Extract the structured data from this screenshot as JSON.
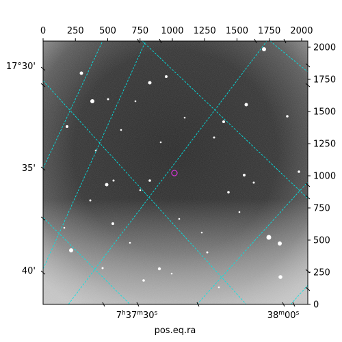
{
  "image": {
    "description_free": true,
    "pixel_axis_top": {
      "ticks": [
        0,
        250,
        500,
        750,
        1000,
        1250,
        1500,
        1750,
        2000
      ],
      "range": [
        0,
        2048
      ]
    },
    "pixel_axis_right": {
      "ticks": [
        0,
        250,
        500,
        750,
        1000,
        1250,
        1500,
        1750,
        2000
      ],
      "range": [
        0,
        2048
      ]
    },
    "dec_labels": [
      "17°30'",
      "35'",
      "40'"
    ],
    "ra_labels": [
      {
        "main": "7",
        "h": "h",
        "m1": "37",
        "m": "m",
        "s1": "30",
        "s": "s"
      },
      {
        "main": "38",
        "m": "m",
        "s1": "00",
        "s": "s"
      }
    ],
    "xlabel": "pos.eq.ra",
    "colors": {
      "grid": "#00e5e5",
      "marker": "#cc33cc",
      "frame": "#000000"
    }
  }
}
